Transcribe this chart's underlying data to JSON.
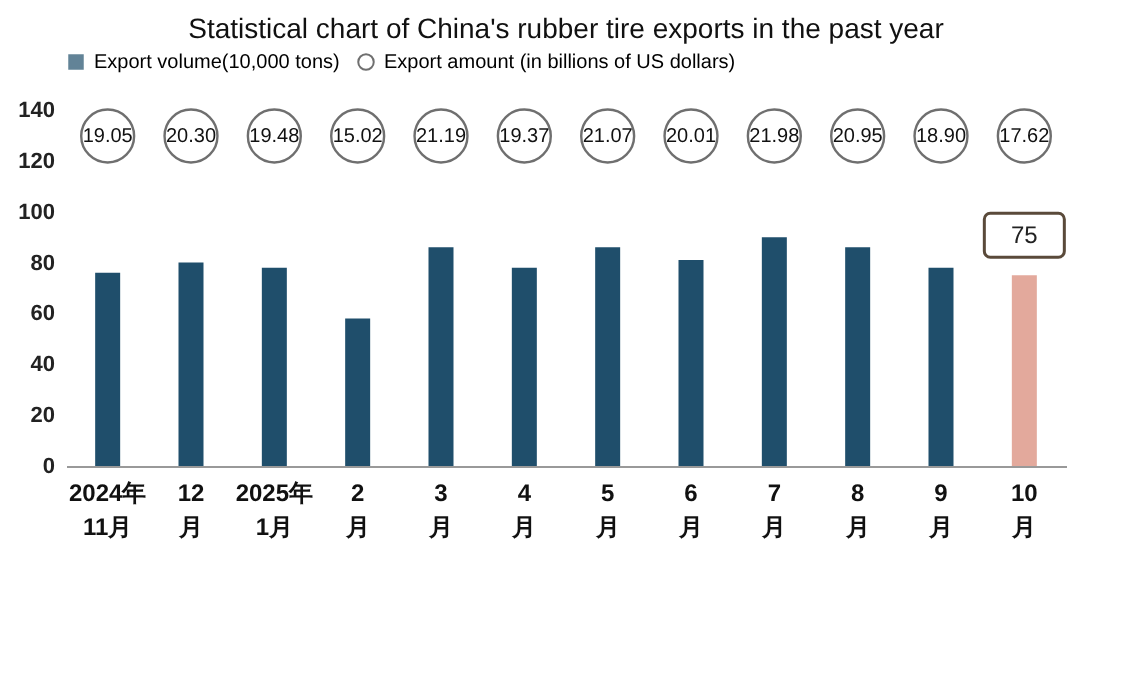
{
  "chart_data": {
    "type": "bar",
    "title": "Statistical chart of China's rubber tire exports in the past year",
    "categories": [
      "2024年\n11月",
      "12\n月",
      "2025年\n1月",
      "2\n月",
      "3\n月",
      "4\n月",
      "5\n月",
      "6\n月",
      "7\n月",
      "8\n月",
      "9\n月",
      "10\n月"
    ],
    "series": [
      {
        "name": "Export volume(10,000 tons)",
        "color": "#1f4e6b",
        "colors": [
          "#1f4e6b",
          "#1f4e6b",
          "#1f4e6b",
          "#1f4e6b",
          "#1f4e6b",
          "#1f4e6b",
          "#1f4e6b",
          "#1f4e6b",
          "#1f4e6b",
          "#1f4e6b",
          "#1f4e6b",
          "#e3a99c"
        ],
        "values": [
          76,
          80,
          78,
          58,
          86,
          78,
          86,
          81,
          90,
          86,
          78,
          75
        ],
        "value_labels": [
          null,
          null,
          null,
          null,
          null,
          null,
          null,
          null,
          null,
          null,
          null,
          "75"
        ]
      }
    ],
    "annotations": [
      "Export amount (in billions of US dollars)",
      {
        "text": "19.05",
        "x": "2024年\n11月"
      },
      {
        "text": "20.30",
        "x": "12\n月"
      },
      {
        "text": "19.48",
        "x": "2025年\n1月"
      },
      {
        "text": "15.02",
        "x": "2\n月"
      },
      {
        "text": "21.19",
        "x": "3\n月"
      },
      {
        "text": "19.37",
        "x": "4\n月"
      },
      {
        "text": "21.07",
        "x": "5\n月"
      },
      {
        "text": "20.01",
        "x": "6\n月"
      },
      {
        "text": "21.98",
        "x": "7\n月"
      },
      {
        "text": "20.95",
        "x": "8\n月"
      },
      {
        "text": "18.90",
        "x": "9\n月"
      },
      {
        "text": "17.62",
        "x": "10\n月"
      }
    ],
    "ylim": [
      0,
      140
    ],
    "yticks": [
      0,
      20,
      40,
      60,
      80,
      100,
      120,
      140
    ],
    "grid": false,
    "legend": "top"
  }
}
